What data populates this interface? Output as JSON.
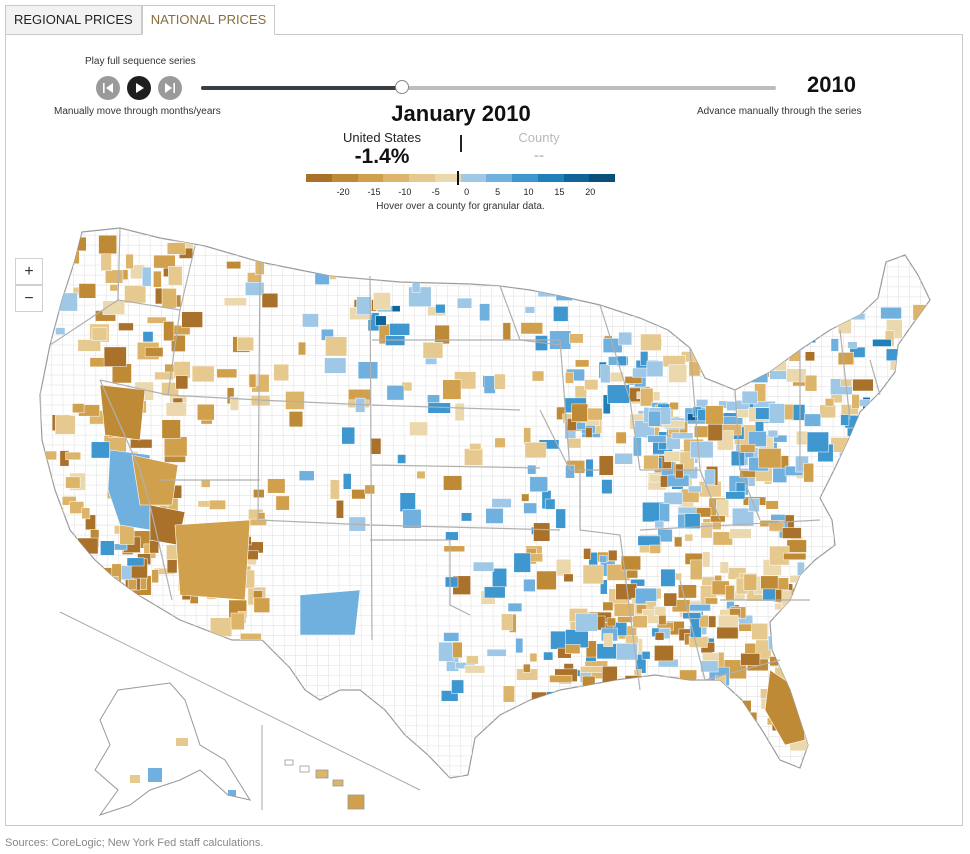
{
  "tabs": [
    {
      "label": "REGIONAL PRICES",
      "active": false
    },
    {
      "label": "NATIONAL PRICES",
      "active": true
    }
  ],
  "controls": {
    "play_caption": "Play full sequence series",
    "manual_caption": "Manually move through months/years",
    "advance_caption": "Advance manually through the series",
    "buttons": [
      "step-back-icon",
      "play-icon",
      "step-forward-icon"
    ],
    "timeline_position_fraction": 0.35
  },
  "year": "2010",
  "period_title": "January 2010",
  "summary": {
    "us_label": "United States",
    "us_value": "-1.4%",
    "county_label": "County",
    "county_value": "--"
  },
  "legend": {
    "ticks": [
      "-20",
      "-15",
      "-10",
      "-5",
      "0",
      "5",
      "10",
      "15",
      "20"
    ],
    "colors": [
      "#a9712a",
      "#bf8a36",
      "#d1a04c",
      "#dcb46a",
      "#e6c98e",
      "#ecd8ad",
      "#9fc8e6",
      "#6fb0de",
      "#3f97d0",
      "#1f7fb9",
      "#0f6599",
      "#0a4f7a"
    ],
    "indicator_value": -1.4,
    "hint": "Hover over a county for granular data."
  },
  "map": {
    "zoom_in_label": "+",
    "zoom_out_label": "−",
    "fill_no_data": "#ffffff",
    "border_color": "#b0b0b0"
  },
  "sources": "Sources: CoreLogic; New York Fed staff calculations."
}
